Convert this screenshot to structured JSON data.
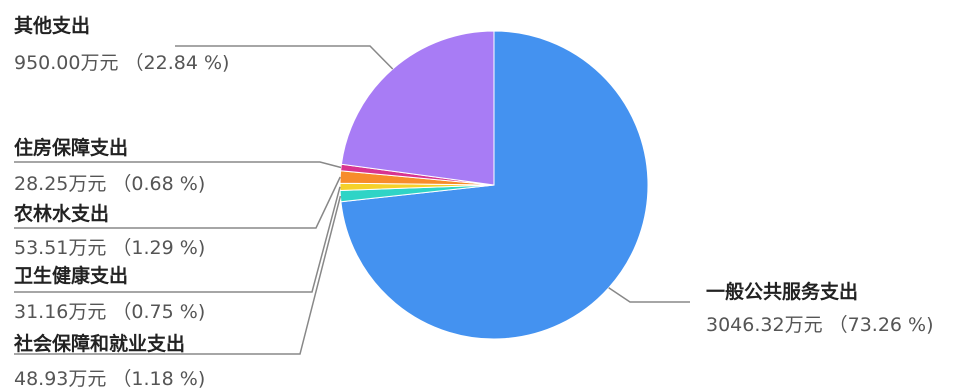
{
  "chart_data": {
    "type": "pie",
    "title": "",
    "slices": [
      {
        "name": "一般公共服务支出",
        "value": 3046.32,
        "percent": 73.26,
        "value_text": "3046.32万元 （73.26 %)",
        "color": "#4492f0"
      },
      {
        "name": "社会保障和就业支出",
        "value": 48.93,
        "percent": 1.18,
        "value_text": "48.93万元 （1.18 %)",
        "color": "#2fd4c6"
      },
      {
        "name": "卫生健康支出",
        "value": 31.16,
        "percent": 0.75,
        "value_text": "31.16万元 （0.75 %)",
        "color": "#f5d12a"
      },
      {
        "name": "农林水支出",
        "value": 53.51,
        "percent": 1.29,
        "value_text": "53.51万元 （1.29 %)",
        "color": "#f78c2b"
      },
      {
        "name": "住房保障支出",
        "value": 28.25,
        "percent": 0.68,
        "value_text": "28.25万元 （0.68 %)",
        "color": "#d8348f"
      },
      {
        "name": "其他支出",
        "value": 950.0,
        "percent": 22.84,
        "value_text": "950.00万元 （22.84 %)",
        "color": "#a87cf5"
      }
    ]
  }
}
